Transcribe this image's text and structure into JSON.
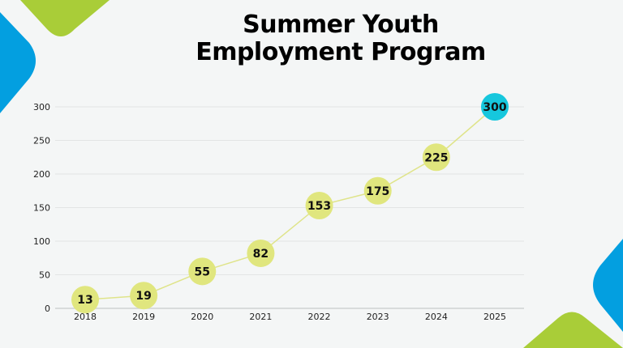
{
  "colors": {
    "background": "#f4f6f6",
    "accent_green": "#a9cd38",
    "accent_blue": "#039fe0",
    "marker": "#e0e67e",
    "highlight_marker": "#16c7dd",
    "line": "#dfe48a",
    "grid": "#e2e4e4"
  },
  "chart_data": {
    "type": "line",
    "title": "Summer Youth Employment Program",
    "title_lines": [
      "Summer Youth",
      "Employment Program"
    ],
    "xlabel": "",
    "ylabel": "",
    "categories": [
      "2018",
      "2019",
      "2020",
      "2021",
      "2022",
      "2023",
      "2024",
      "2025"
    ],
    "values": [
      13,
      19,
      55,
      82,
      153,
      175,
      225,
      300
    ],
    "data_labels": [
      "13",
      "19",
      "55",
      "82",
      "153",
      "175",
      "225",
      "300"
    ],
    "highlight_index": 7,
    "ylim": [
      0,
      300
    ],
    "yticks": [
      0,
      50,
      100,
      150,
      200,
      250,
      300
    ],
    "ytick_labels": [
      "0",
      "50",
      "100",
      "150",
      "200",
      "250",
      "300"
    ],
    "grid": true,
    "legend": "none"
  }
}
